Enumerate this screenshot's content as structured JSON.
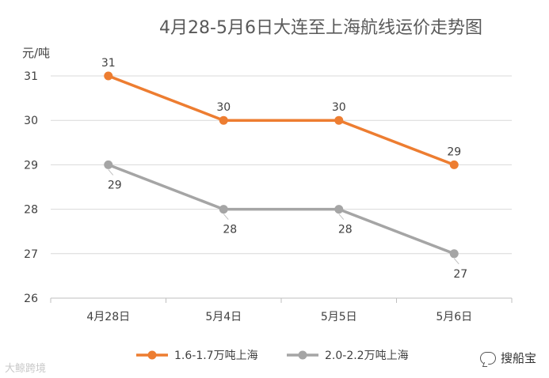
{
  "chart_data": {
    "type": "line",
    "title": "4月28-5月6日大连至上海航线运价走势图",
    "ylabel": "元/吨",
    "xlabel": "",
    "categories": [
      "4月28日",
      "5月4日",
      "5月5日",
      "5月6日"
    ],
    "ylim": [
      26,
      31
    ],
    "yticks": [
      26,
      27,
      28,
      29,
      30,
      31
    ],
    "grid": true,
    "legend_position": "bottom",
    "series": [
      {
        "name": "1.6-1.7万吨上海",
        "values": [
          31,
          30,
          30,
          29
        ],
        "color": "#ED7D31",
        "label_side": "above"
      },
      {
        "name": "2.0-2.2万吨上海",
        "values": [
          29,
          28,
          28,
          27
        ],
        "color": "#A5A5A5",
        "label_side": "below"
      }
    ]
  },
  "watermarks": {
    "left": "大鲸跨境",
    "right": "搜船宝"
  }
}
